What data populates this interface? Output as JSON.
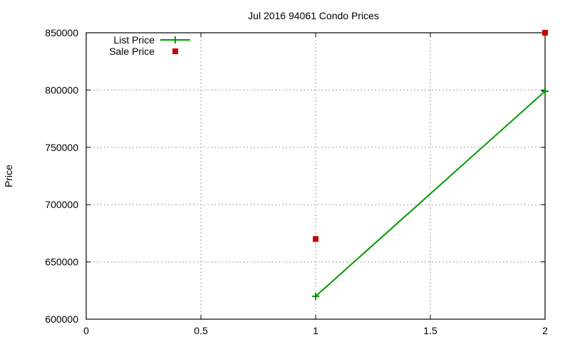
{
  "chart_data": {
    "type": "line",
    "title": "Jul 2016 94061 Condo Prices",
    "xlabel": "",
    "ylabel": "Price",
    "xlim": [
      0,
      2
    ],
    "ylim": [
      600000,
      850000
    ],
    "x_ticks": [
      "0",
      "0.5",
      "1",
      "1.5",
      "2"
    ],
    "y_ticks": [
      "600000",
      "650000",
      "700000",
      "750000",
      "800000",
      "850000"
    ],
    "grid": true,
    "legend_position": "top-left",
    "series": [
      {
        "name": "List Price",
        "style": "line+points",
        "marker": "plus",
        "color": "#009900",
        "x": [
          1,
          2
        ],
        "values": [
          620000,
          799000
        ]
      },
      {
        "name": "Sale Price",
        "style": "points",
        "marker": "square",
        "color": "#cc0000",
        "x": [
          1,
          2
        ],
        "values": [
          670000,
          850000
        ]
      }
    ]
  }
}
